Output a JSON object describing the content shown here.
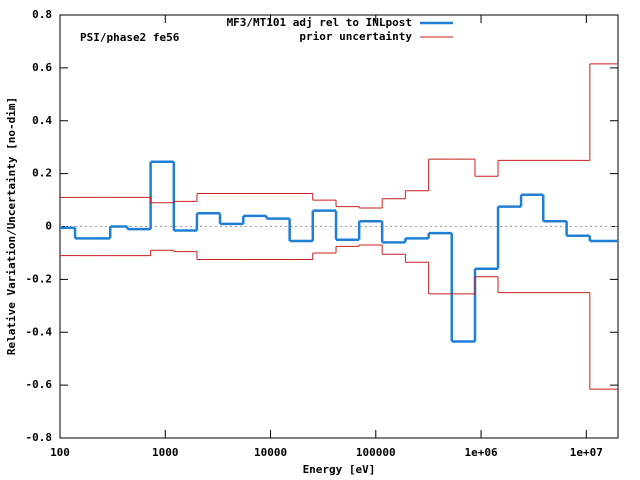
{
  "chart_data": {
    "type": "histogram_step",
    "annotation": "PSI/phase2 fe56",
    "xlabel": "Energy [eV]",
    "ylabel": "Relative Variation/Uncertainty [no-dim]",
    "xscale": "log",
    "bins": [
      100,
      139,
      300,
      437,
      726,
      1206,
      2000,
      3313,
      5515,
      9160,
      15200,
      25200,
      41900,
      69500,
      115000,
      191000,
      318000,
      527000,
      876000,
      1450000,
      2400000,
      3900000,
      6500000,
      10800000,
      20000000
    ],
    "series": [
      {
        "name": "MF3/MT101 adj rel to INLpost",
        "color": "#1f7fd4",
        "values": [
          -0.005,
          -0.045,
          0,
          -0.01,
          0.245,
          -0.015,
          0.05,
          0.01,
          0.04,
          0.03,
          -0.055,
          0.06,
          -0.05,
          0.02,
          -0.06,
          -0.045,
          -0.025,
          -0.435,
          -0.16,
          0.075,
          0.12,
          0.02,
          -0.035,
          -0.055
        ]
      },
      {
        "name": "prior uncertainty",
        "color": "#c81e1e",
        "values": [
          0.11,
          0.11,
          0.11,
          0.11,
          0.09,
          0.095,
          0.125,
          0.125,
          0.125,
          0.125,
          0.125,
          0.1,
          0.075,
          0.07,
          0.105,
          0.135,
          0.255,
          0.255,
          0.19,
          0.25,
          0.25,
          0.25,
          0.25,
          0.615
        ]
      },
      {
        "color": "#c81e1e",
        "values": [
          -0.11,
          -0.11,
          -0.11,
          -0.11,
          -0.09,
          -0.095,
          -0.125,
          -0.125,
          -0.125,
          -0.125,
          -0.125,
          -0.1,
          -0.075,
          -0.07,
          -0.105,
          -0.135,
          -0.255,
          -0.255,
          -0.19,
          -0.25,
          -0.25,
          -0.25,
          -0.25,
          -0.615
        ]
      }
    ],
    "xlim": [
      100,
      20000000
    ],
    "xticks": [
      100,
      1000,
      10000,
      100000,
      {
        "value": 1000000,
        "label": "1e+06"
      },
      {
        "value": 10000000,
        "label": "1e+07"
      }
    ],
    "ylim": [
      -0.8,
      0.8
    ],
    "yticks": [
      -0.8,
      -0.6,
      -0.4,
      -0.2,
      0,
      0.2,
      0.4,
      0.6,
      0.8
    ],
    "legend": "top"
  }
}
